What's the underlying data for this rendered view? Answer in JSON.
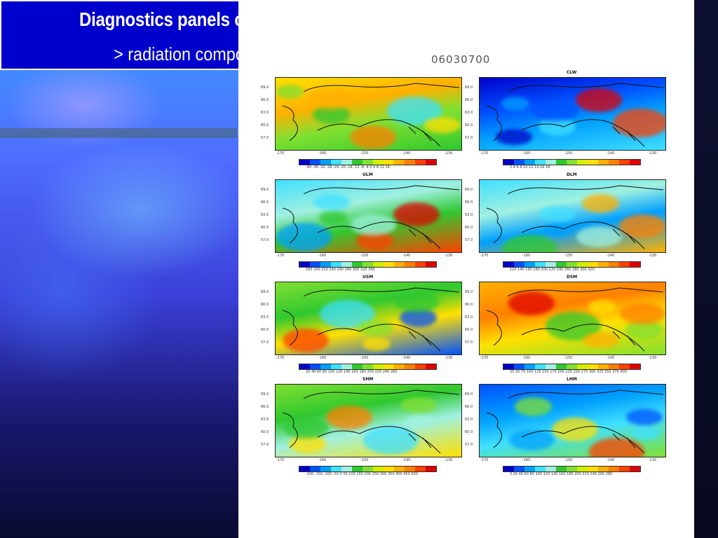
{
  "slide": {
    "title": "Diagnostics panels output",
    "subtitle": "> radiation components"
  },
  "figure": {
    "date_label": "06030700",
    "lat_ticks": [
      "69.0",
      "66.0",
      "63.0",
      "60.0",
      "57.0"
    ],
    "lon_ticks": [
      "-170",
      "-160",
      "-150",
      "-140",
      "-130"
    ],
    "panels": [
      {
        "name": "",
        "label": "",
        "cb": "-40 -36 -32 -28 -24 -20 -16 -12 -8 -4 0 4 8 12 16",
        "scheme": "orange"
      },
      {
        "name": "CLW",
        "label": "CLW",
        "cb": "2 4 6 8 10 12 14 16 18",
        "scheme": "blue"
      },
      {
        "name": "ULM",
        "label": "ULM",
        "cb": "160 200 220 240 260 280 300 320 340",
        "scheme": "ulm"
      },
      {
        "name": "DLM",
        "label": "DLM",
        "cb": "120 140 160 180 200 220 240 260 280 300 320",
        "scheme": "dlm"
      },
      {
        "name": "USM",
        "label": "USM",
        "cb": "20 40 60 80 100 120 140 160 180 200 220 240 260",
        "scheme": "usm"
      },
      {
        "name": "DSM",
        "label": "DSM",
        "cb": "25 50 75 100 125 150 175 200 225 250 275 300 325 350 375 400",
        "scheme": "dsm"
      },
      {
        "name": "SHM",
        "label": "SHM",
        "cb": "-200 -150 -100 -50 0 50 100 150 200 250 300 350 400 450 500",
        "scheme": "shm"
      },
      {
        "name": "LHM",
        "label": "LHM",
        "cb": "0 20 40 60 80 100 120 140 160 180 200 220 240 260 280",
        "scheme": "lhm"
      }
    ]
  },
  "colors": {
    "title_box": "#0000cc",
    "palette": [
      "#0000c8",
      "#0050ff",
      "#00a0ff",
      "#40e0ff",
      "#a0f0e0",
      "#30c830",
      "#80e030",
      "#d0f000",
      "#ffe000",
      "#ffb000",
      "#ff8000",
      "#ff4000",
      "#e00000"
    ]
  }
}
